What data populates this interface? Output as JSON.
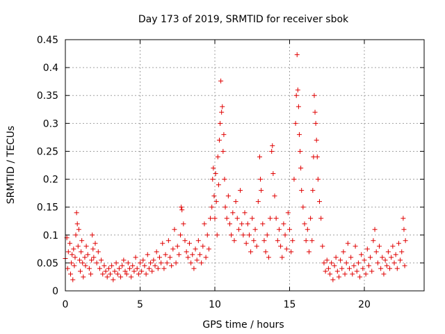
{
  "chart_data": {
    "type": "scatter",
    "title": "Day 173 of 2019, SRMTID for receiver sbok",
    "xlabel": "GPS time / hours",
    "ylabel": "SRMTID / TECUs",
    "xlim": [
      0,
      24
    ],
    "ylim": [
      0,
      0.45
    ],
    "xticks": [
      0,
      5,
      10,
      15,
      20
    ],
    "xtick_labels": [
      "0",
      "5",
      "10",
      "15",
      "20"
    ],
    "yticks": [
      0,
      0.05,
      0.1,
      0.15,
      0.2,
      0.25,
      0.3,
      0.35,
      0.4,
      0.45
    ],
    "ytick_labels": [
      "0",
      "0.05",
      "0.1",
      "0.15",
      "0.2",
      "0.25",
      "0.3",
      "0.35",
      "0.4",
      "0.45"
    ],
    "grid": true,
    "marker": "+",
    "marker_color": "#e00000",
    "series": [
      {
        "name": "SRMTID",
        "points": [
          [
            0.0,
            0.058
          ],
          [
            0.1,
            0.095
          ],
          [
            0.15,
            0.04
          ],
          [
            0.2,
            0.07
          ],
          [
            0.3,
            0.085
          ],
          [
            0.35,
            0.03
          ],
          [
            0.4,
            0.05
          ],
          [
            0.45,
            0.065
          ],
          [
            0.5,
            0.02
          ],
          [
            0.55,
            0.075
          ],
          [
            0.6,
            0.045
          ],
          [
            0.65,
            0.06
          ],
          [
            0.7,
            0.1
          ],
          [
            0.75,
            0.14
          ],
          [
            0.8,
            0.12
          ],
          [
            0.85,
            0.08
          ],
          [
            0.9,
            0.11
          ],
          [
            0.95,
            0.055
          ],
          [
            1.0,
            0.035
          ],
          [
            1.05,
            0.07
          ],
          [
            1.1,
            0.09
          ],
          [
            1.15,
            0.05
          ],
          [
            1.2,
            0.025
          ],
          [
            1.3,
            0.06
          ],
          [
            1.35,
            0.045
          ],
          [
            1.4,
            0.08
          ],
          [
            1.5,
            0.065
          ],
          [
            1.6,
            0.04
          ],
          [
            1.7,
            0.03
          ],
          [
            1.75,
            0.055
          ],
          [
            1.8,
            0.1
          ],
          [
            1.85,
            0.075
          ],
          [
            1.9,
            0.06
          ],
          [
            2.0,
            0.085
          ],
          [
            2.1,
            0.05
          ],
          [
            2.2,
            0.07
          ],
          [
            2.3,
            0.04
          ],
          [
            2.4,
            0.055
          ],
          [
            2.5,
            0.03
          ],
          [
            2.6,
            0.045
          ],
          [
            2.7,
            0.035
          ],
          [
            2.8,
            0.025
          ],
          [
            2.9,
            0.04
          ],
          [
            3.0,
            0.03
          ],
          [
            3.1,
            0.045
          ],
          [
            3.2,
            0.02
          ],
          [
            3.3,
            0.035
          ],
          [
            3.4,
            0.05
          ],
          [
            3.5,
            0.03
          ],
          [
            3.6,
            0.04
          ],
          [
            3.7,
            0.025
          ],
          [
            3.8,
            0.045
          ],
          [
            3.9,
            0.055
          ],
          [
            4.0,
            0.035
          ],
          [
            4.1,
            0.03
          ],
          [
            4.2,
            0.05
          ],
          [
            4.3,
            0.04
          ],
          [
            4.4,
            0.025
          ],
          [
            4.5,
            0.045
          ],
          [
            4.6,
            0.035
          ],
          [
            4.7,
            0.06
          ],
          [
            4.8,
            0.04
          ],
          [
            4.9,
            0.03
          ],
          [
            5.0,
            0.05
          ],
          [
            5.1,
            0.035
          ],
          [
            5.2,
            0.055
          ],
          [
            5.3,
            0.045
          ],
          [
            5.4,
            0.03
          ],
          [
            5.5,
            0.065
          ],
          [
            5.6,
            0.04
          ],
          [
            5.7,
            0.05
          ],
          [
            5.8,
            0.035
          ],
          [
            5.9,
            0.055
          ],
          [
            6.0,
            0.045
          ],
          [
            6.1,
            0.07
          ],
          [
            6.2,
            0.04
          ],
          [
            6.3,
            0.06
          ],
          [
            6.4,
            0.05
          ],
          [
            6.5,
            0.085
          ],
          [
            6.6,
            0.04
          ],
          [
            6.7,
            0.065
          ],
          [
            6.8,
            0.05
          ],
          [
            6.9,
            0.09
          ],
          [
            7.0,
            0.06
          ],
          [
            7.1,
            0.045
          ],
          [
            7.2,
            0.075
          ],
          [
            7.3,
            0.11
          ],
          [
            7.4,
            0.05
          ],
          [
            7.5,
            0.08
          ],
          [
            7.6,
            0.065
          ],
          [
            7.7,
            0.1
          ],
          [
            7.75,
            0.15
          ],
          [
            7.8,
            0.145
          ],
          [
            7.9,
            0.12
          ],
          [
            8.0,
            0.09
          ],
          [
            8.1,
            0.07
          ],
          [
            8.2,
            0.06
          ],
          [
            8.3,
            0.085
          ],
          [
            8.4,
            0.05
          ],
          [
            8.5,
            0.065
          ],
          [
            8.6,
            0.04
          ],
          [
            8.7,
            0.075
          ],
          [
            8.8,
            0.055
          ],
          [
            8.9,
            0.09
          ],
          [
            9.0,
            0.065
          ],
          [
            9.1,
            0.05
          ],
          [
            9.2,
            0.08
          ],
          [
            9.3,
            0.12
          ],
          [
            9.4,
            0.06
          ],
          [
            9.5,
            0.1
          ],
          [
            9.6,
            0.075
          ],
          [
            9.7,
            0.13
          ],
          [
            9.8,
            0.15
          ],
          [
            9.85,
            0.2
          ],
          [
            9.9,
            0.22
          ],
          [
            9.95,
            0.17
          ],
          [
            10.0,
            0.13
          ],
          [
            10.05,
            0.21
          ],
          [
            10.1,
            0.16
          ],
          [
            10.15,
            0.1
          ],
          [
            10.2,
            0.24
          ],
          [
            10.25,
            0.19
          ],
          [
            10.3,
            0.27
          ],
          [
            10.35,
            0.3
          ],
          [
            10.4,
            0.376
          ],
          [
            10.45,
            0.32
          ],
          [
            10.5,
            0.33
          ],
          [
            10.55,
            0.25
          ],
          [
            10.6,
            0.28
          ],
          [
            10.65,
            0.2
          ],
          [
            10.7,
            0.15
          ],
          [
            10.8,
            0.13
          ],
          [
            10.9,
            0.17
          ],
          [
            11.0,
            0.12
          ],
          [
            11.1,
            0.1
          ],
          [
            11.2,
            0.14
          ],
          [
            11.3,
            0.09
          ],
          [
            11.4,
            0.16
          ],
          [
            11.5,
            0.13
          ],
          [
            11.6,
            0.11
          ],
          [
            11.7,
            0.18
          ],
          [
            11.8,
            0.12
          ],
          [
            11.9,
            0.1
          ],
          [
            12.0,
            0.14
          ],
          [
            12.1,
            0.085
          ],
          [
            12.2,
            0.12
          ],
          [
            12.3,
            0.1
          ],
          [
            12.4,
            0.07
          ],
          [
            12.5,
            0.13
          ],
          [
            12.6,
            0.09
          ],
          [
            12.7,
            0.11
          ],
          [
            12.8,
            0.08
          ],
          [
            12.9,
            0.16
          ],
          [
            13.0,
            0.24
          ],
          [
            13.05,
            0.2
          ],
          [
            13.1,
            0.18
          ],
          [
            13.2,
            0.12
          ],
          [
            13.3,
            0.09
          ],
          [
            13.4,
            0.07
          ],
          [
            13.5,
            0.1
          ],
          [
            13.6,
            0.06
          ],
          [
            13.7,
            0.13
          ],
          [
            13.8,
            0.25
          ],
          [
            13.85,
            0.26
          ],
          [
            13.9,
            0.21
          ],
          [
            14.0,
            0.17
          ],
          [
            14.1,
            0.13
          ],
          [
            14.2,
            0.09
          ],
          [
            14.3,
            0.11
          ],
          [
            14.4,
            0.08
          ],
          [
            14.5,
            0.06
          ],
          [
            14.6,
            0.12
          ],
          [
            14.7,
            0.1
          ],
          [
            14.8,
            0.075
          ],
          [
            14.9,
            0.14
          ],
          [
            15.0,
            0.11
          ],
          [
            15.1,
            0.07
          ],
          [
            15.2,
            0.09
          ],
          [
            15.3,
            0.2
          ],
          [
            15.4,
            0.3
          ],
          [
            15.45,
            0.35
          ],
          [
            15.5,
            0.423
          ],
          [
            15.55,
            0.36
          ],
          [
            15.6,
            0.33
          ],
          [
            15.65,
            0.28
          ],
          [
            15.7,
            0.25
          ],
          [
            15.75,
            0.22
          ],
          [
            15.8,
            0.18
          ],
          [
            15.9,
            0.15
          ],
          [
            16.0,
            0.12
          ],
          [
            16.1,
            0.09
          ],
          [
            16.2,
            0.11
          ],
          [
            16.3,
            0.07
          ],
          [
            16.4,
            0.13
          ],
          [
            16.5,
            0.09
          ],
          [
            16.55,
            0.18
          ],
          [
            16.6,
            0.24
          ],
          [
            16.65,
            0.35
          ],
          [
            16.7,
            0.32
          ],
          [
            16.75,
            0.3
          ],
          [
            16.8,
            0.27
          ],
          [
            16.85,
            0.24
          ],
          [
            16.9,
            0.2
          ],
          [
            17.0,
            0.16
          ],
          [
            17.1,
            0.13
          ],
          [
            17.2,
            0.08
          ],
          [
            17.3,
            0.05
          ],
          [
            17.4,
            0.035
          ],
          [
            17.5,
            0.055
          ],
          [
            17.6,
            0.04
          ],
          [
            17.7,
            0.03
          ],
          [
            17.8,
            0.05
          ],
          [
            17.9,
            0.02
          ],
          [
            18.0,
            0.045
          ],
          [
            18.1,
            0.06
          ],
          [
            18.2,
            0.035
          ],
          [
            18.3,
            0.025
          ],
          [
            18.4,
            0.055
          ],
          [
            18.5,
            0.04
          ],
          [
            18.6,
            0.07
          ],
          [
            18.7,
            0.03
          ],
          [
            18.8,
            0.05
          ],
          [
            18.9,
            0.085
          ],
          [
            19.0,
            0.04
          ],
          [
            19.1,
            0.06
          ],
          [
            19.2,
            0.03
          ],
          [
            19.3,
            0.045
          ],
          [
            19.4,
            0.08
          ],
          [
            19.5,
            0.035
          ],
          [
            19.6,
            0.05
          ],
          [
            19.7,
            0.025
          ],
          [
            19.8,
            0.065
          ],
          [
            19.9,
            0.04
          ],
          [
            20.0,
            0.055
          ],
          [
            20.1,
            0.03
          ],
          [
            20.2,
            0.075
          ],
          [
            20.3,
            0.045
          ],
          [
            20.4,
            0.06
          ],
          [
            20.5,
            0.035
          ],
          [
            20.6,
            0.09
          ],
          [
            20.7,
            0.11
          ],
          [
            20.8,
            0.07
          ],
          [
            20.9,
            0.05
          ],
          [
            21.0,
            0.08
          ],
          [
            21.1,
            0.04
          ],
          [
            21.2,
            0.06
          ],
          [
            21.3,
            0.03
          ],
          [
            21.4,
            0.055
          ],
          [
            21.5,
            0.045
          ],
          [
            21.6,
            0.07
          ],
          [
            21.7,
            0.04
          ],
          [
            21.8,
            0.06
          ],
          [
            21.9,
            0.08
          ],
          [
            22.0,
            0.05
          ],
          [
            22.1,
            0.065
          ],
          [
            22.2,
            0.04
          ],
          [
            22.3,
            0.085
          ],
          [
            22.4,
            0.055
          ],
          [
            22.5,
            0.07
          ],
          [
            22.6,
            0.13
          ],
          [
            22.65,
            0.11
          ],
          [
            22.7,
            0.045
          ],
          [
            22.75,
            0.09
          ]
        ]
      }
    ]
  }
}
